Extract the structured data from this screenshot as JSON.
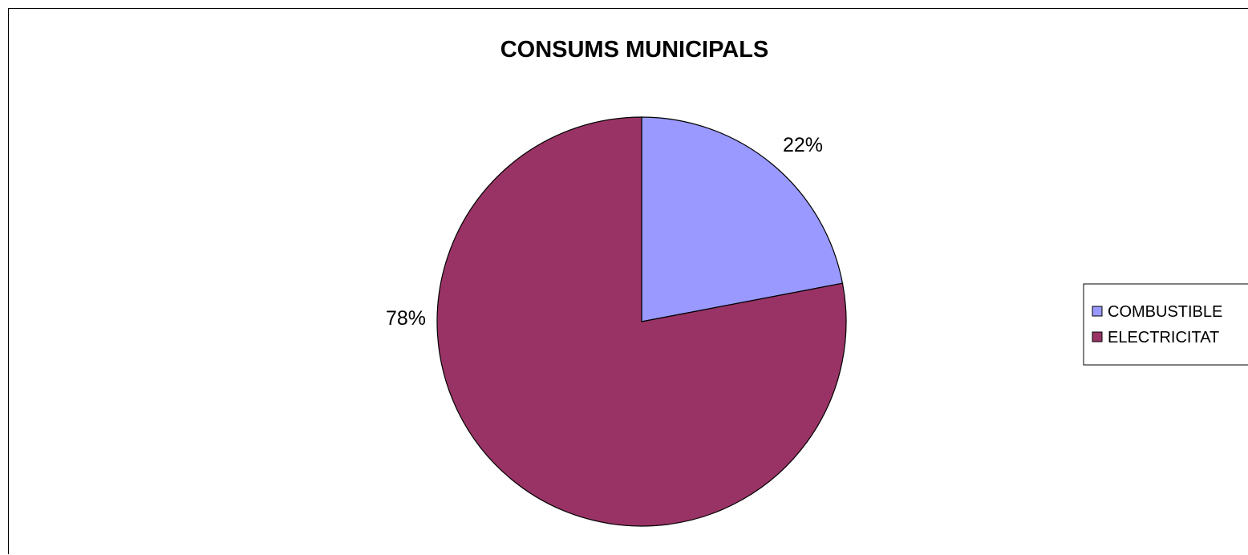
{
  "chart_data": {
    "type": "pie",
    "title": "CONSUMS MUNICIPALS",
    "series": [
      {
        "name": "COMBUSTIBLE",
        "value": 22,
        "label": "22%",
        "color": "#9999FF"
      },
      {
        "name": "ELECTRICITAT",
        "value": 78,
        "label": "78%",
        "color": "#993366"
      }
    ],
    "legend_position": "right",
    "start_angle": "12 o'clock, clockwise",
    "border_color": "#000000"
  }
}
